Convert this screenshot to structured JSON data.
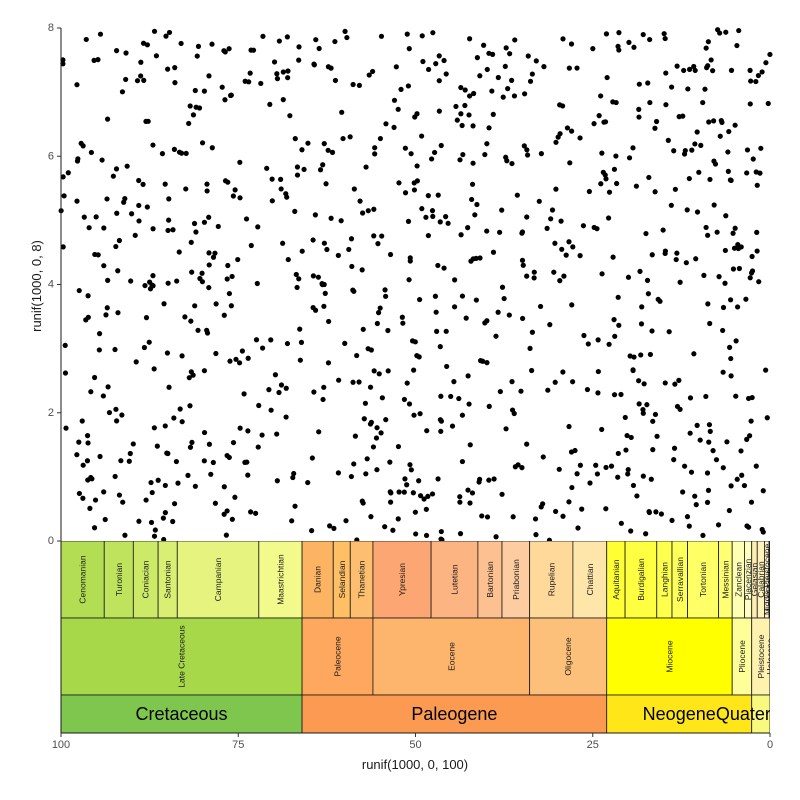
{
  "chart_data": {
    "type": "scatter",
    "title": "",
    "xlabel": "runif(1000, 0, 100)",
    "ylabel": "runif(1000, 0, 8)",
    "xlim": [
      100,
      0
    ],
    "ylim": [
      0,
      8
    ],
    "x_reversed": true,
    "x_ticks": [
      100,
      75,
      50,
      25,
      0
    ],
    "x_tick_labels": [
      "100",
      "75",
      "50",
      "25",
      "0"
    ],
    "y_ticks": [
      0,
      2,
      4,
      6,
      8
    ],
    "y_tick_labels": [
      "0",
      "2",
      "4",
      "6",
      "8"
    ],
    "grid": false,
    "point_color": "#000000",
    "n_points": 1000,
    "points_note_seed": 20240611,
    "stages": [
      {
        "name": "Cenomanian",
        "start": 100.5,
        "end": 93.9,
        "color": "#b3de53"
      },
      {
        "name": "Turonian",
        "start": 93.9,
        "end": 89.8,
        "color": "#bfe35d"
      },
      {
        "name": "Coniacian",
        "start": 89.8,
        "end": 86.3,
        "color": "#cce968"
      },
      {
        "name": "Santonian",
        "start": 86.3,
        "end": 83.6,
        "color": "#d9ef74"
      },
      {
        "name": "Campanian",
        "start": 83.6,
        "end": 72.1,
        "color": "#e6f47f"
      },
      {
        "name": "Maastrichtian",
        "start": 72.1,
        "end": 66.0,
        "color": "#f2fa8c"
      },
      {
        "name": "Danian",
        "start": 66.0,
        "end": 61.6,
        "color": "#fdb462"
      },
      {
        "name": "Selandian",
        "start": 61.6,
        "end": 59.2,
        "color": "#febf65"
      },
      {
        "name": "Thanetian",
        "start": 59.2,
        "end": 56.0,
        "color": "#fdbf6f"
      },
      {
        "name": "Ypresian",
        "start": 56.0,
        "end": 47.8,
        "color": "#fca773"
      },
      {
        "name": "Lutetian",
        "start": 47.8,
        "end": 41.2,
        "color": "#fcb482"
      },
      {
        "name": "Bartonian",
        "start": 41.2,
        "end": 37.8,
        "color": "#fdc091"
      },
      {
        "name": "Priabonian",
        "start": 37.8,
        "end": 33.9,
        "color": "#fdcda1"
      },
      {
        "name": "Rupelian",
        "start": 33.9,
        "end": 27.8,
        "color": "#fed99a"
      },
      {
        "name": "Chattian",
        "start": 27.8,
        "end": 23.03,
        "color": "#fee6aa"
      },
      {
        "name": "Aquitanian",
        "start": 23.03,
        "end": 20.44,
        "color": "#ffff33"
      },
      {
        "name": "Burdigalian",
        "start": 20.44,
        "end": 15.97,
        "color": "#ffff41"
      },
      {
        "name": "Langhian",
        "start": 15.97,
        "end": 13.82,
        "color": "#ffff4d"
      },
      {
        "name": "Serravallian",
        "start": 13.82,
        "end": 11.63,
        "color": "#ffff59"
      },
      {
        "name": "Tortonian",
        "start": 11.63,
        "end": 7.246,
        "color": "#ffff66"
      },
      {
        "name": "Messinian",
        "start": 7.246,
        "end": 5.333,
        "color": "#ffff73"
      },
      {
        "name": "Zanclean",
        "start": 5.333,
        "end": 3.6,
        "color": "#ffffb3"
      },
      {
        "name": "Piacenzian",
        "start": 3.6,
        "end": 2.58,
        "color": "#ffffbf"
      },
      {
        "name": "Gelasian",
        "start": 2.58,
        "end": 1.8,
        "color": "#ffedb3"
      },
      {
        "name": "Calabrian",
        "start": 1.8,
        "end": 0.781,
        "color": "#fff2ba"
      },
      {
        "name": "Middle Pleistocene",
        "start": 0.781,
        "end": 0.126,
        "color": "#fff2c7"
      },
      {
        "name": "Late Pleistocene",
        "start": 0.126,
        "end": 0.0117,
        "color": "#fff2d3"
      },
      {
        "name": "Holocene",
        "start": 0.0117,
        "end": 0.0,
        "color": "#fef2e0"
      }
    ],
    "epochs": [
      {
        "name": "Late Cretaceous",
        "start": 100.5,
        "end": 66.0,
        "color": "#a6d84a"
      },
      {
        "name": "Paleocene",
        "start": 66.0,
        "end": 56.0,
        "color": "#fda75f"
      },
      {
        "name": "Eocene",
        "start": 56.0,
        "end": 33.9,
        "color": "#fdb46c"
      },
      {
        "name": "Oligocene",
        "start": 33.9,
        "end": 23.03,
        "color": "#fdc07a"
      },
      {
        "name": "Miocene",
        "start": 23.03,
        "end": 5.333,
        "color": "#ffff00"
      },
      {
        "name": "Pliocene",
        "start": 5.333,
        "end": 2.58,
        "color": "#ffff99"
      },
      {
        "name": "Pleistocene",
        "start": 2.58,
        "end": 0.0117,
        "color": "#fff2ae"
      },
      {
        "name": "Holocene",
        "start": 0.0117,
        "end": 0.0,
        "color": "#fef2e0"
      }
    ],
    "periods": [
      {
        "name": "Cretaceous",
        "start": 145.0,
        "end": 66.0,
        "color": "#7fc64e"
      },
      {
        "name": "Paleogene",
        "start": 66.0,
        "end": 23.03,
        "color": "#fd9a52"
      },
      {
        "name": "Neogene",
        "start": 23.03,
        "end": 2.58,
        "color": "#ffe619"
      },
      {
        "name": "Quaternary",
        "start": 2.58,
        "end": 0.0,
        "color": "#f9f97f"
      }
    ]
  }
}
